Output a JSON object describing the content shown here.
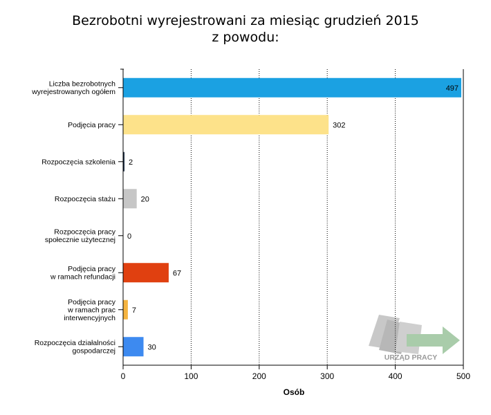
{
  "chart_data": {
    "type": "bar",
    "orientation": "horizontal",
    "title": [
      "Bezrobotni wyrejestrowani za miesiąc grudzień 2015",
      "z powodu:"
    ],
    "xlabel": "Osób",
    "ylabel": "",
    "xlim": [
      0,
      500
    ],
    "xticks": [
      0,
      100,
      200,
      300,
      400,
      500
    ],
    "grid": "vertical dotted",
    "legend": "none",
    "categories": [
      [
        "Liczba bezrobotnych",
        "wyrejestrowanych ogółem"
      ],
      [
        "Podjęcia pracy"
      ],
      [
        "Rozpoczęcia szkolenia"
      ],
      [
        "Rozpoczęcia stażu"
      ],
      [
        "Rozpoczęcia pracy",
        "społecznie użytecznej"
      ],
      [
        "Podjęcia pracy",
        "w ramach refundacji"
      ],
      [
        "Podjęcia pracy",
        "w ramach prac",
        "interwencyjnych"
      ],
      [
        "Rozpoczęcia działalności",
        "gospodarczej"
      ]
    ],
    "values": [
      497,
      302,
      2,
      20,
      0,
      67,
      7,
      30
    ],
    "colors": [
      "#1ba1e2",
      "#fde28a",
      "#1f2f45",
      "#c6c6c6",
      "#ffffff",
      "#e04010",
      "#f5b440",
      "#3d8af0"
    ]
  },
  "watermark": {
    "text": "URZĄD PRACY"
  }
}
